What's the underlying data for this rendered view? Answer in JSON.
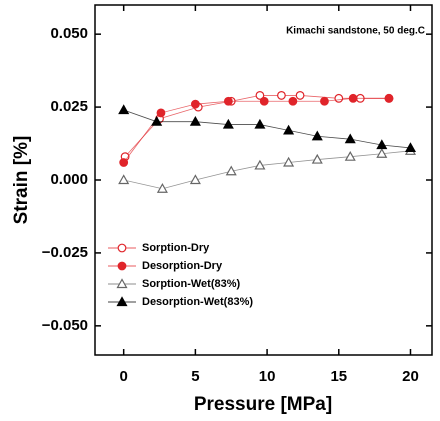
{
  "chart_data": {
    "type": "line",
    "annotation": "Kimachi sandstone, 50 deg.C",
    "x_label": "Pressure [MPa]",
    "y_label": "Strain [%]",
    "xlim": [
      -2,
      21.5
    ],
    "ylim": [
      -0.06,
      0.06
    ],
    "xticks": [
      0,
      5,
      10,
      15,
      20
    ],
    "yticks": [
      {
        "value": 0.05,
        "label": "0.050"
      },
      {
        "value": 0.025,
        "label": "0.025"
      },
      {
        "value": 0,
        "label": "0.000"
      },
      {
        "value": -0.025,
        "label": "−0.025"
      },
      {
        "value": -0.05,
        "label": "−0.050"
      }
    ],
    "legend": "lower left",
    "series": [
      {
        "name": "Sorption-Dry",
        "color": "#e0242a",
        "marker": "circle",
        "filled": false,
        "x": [
          0.1,
          2.5,
          5.2,
          7.5,
          9.5,
          11,
          12.3,
          15,
          16.5,
          18.5
        ],
        "values": [
          0.008,
          0.021,
          0.025,
          0.027,
          0.029,
          0.029,
          0.029,
          0.028,
          0.028,
          0.028
        ]
      },
      {
        "name": "Desorption-Dry",
        "color": "#e0242a",
        "marker": "circle",
        "filled": true,
        "x": [
          0,
          2.6,
          5,
          7.3,
          9.8,
          11.8,
          14,
          16,
          18.5
        ],
        "values": [
          0.006,
          0.023,
          0.026,
          0.027,
          0.027,
          0.027,
          0.027,
          0.028,
          0.028
        ]
      },
      {
        "name": "Sorption-Wet(83%)",
        "color": "#666666",
        "marker": "triangle",
        "filled": false,
        "x": [
          0,
          2.7,
          5,
          7.5,
          9.5,
          11.5,
          13.5,
          15.8,
          18,
          20
        ],
        "values": [
          0.0,
          -0.003,
          0.0,
          0.003,
          0.005,
          0.006,
          0.007,
          0.008,
          0.009,
          0.01
        ]
      },
      {
        "name": "Desorption-Wet(83%)",
        "color": "#000000",
        "marker": "triangle",
        "filled": true,
        "x": [
          0,
          2.3,
          5,
          7.3,
          9.5,
          11.5,
          13.5,
          15.8,
          18,
          20
        ],
        "values": [
          0.024,
          0.02,
          0.02,
          0.019,
          0.019,
          0.017,
          0.015,
          0.014,
          0.012,
          0.011
        ]
      }
    ]
  }
}
